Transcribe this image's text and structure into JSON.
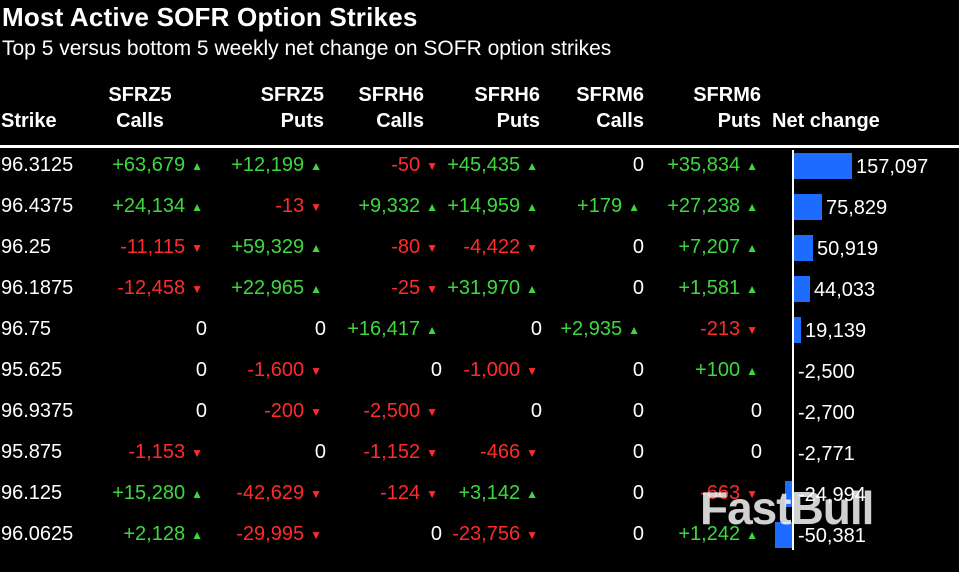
{
  "title": "Most Active SOFR Option Strikes",
  "subtitle": "Top 5 versus bottom 5 weekly net change on SOFR option strikes",
  "headers": {
    "strike": [
      "",
      "Strike"
    ],
    "sfrz5_calls": [
      "SFRZ5",
      "Calls"
    ],
    "sfrz5_puts": [
      "SFRZ5",
      "Puts"
    ],
    "sfrh6_calls": [
      "SFRH6",
      "Calls"
    ],
    "sfrh6_puts": [
      "SFRH6",
      "Puts"
    ],
    "sfrm6_calls": [
      "SFRM6",
      "Calls"
    ],
    "sfrm6_puts": [
      "SFRM6",
      "Puts"
    ],
    "net_change": [
      "",
      "Net change"
    ]
  },
  "colors": {
    "positive": "#3dd83d",
    "negative": "#ff2b2b",
    "bar": "#1e6cff"
  },
  "watermark": "FastBull",
  "chart_data": {
    "type": "table",
    "columns": [
      "Strike",
      "SFRZ5 Calls",
      "SFRZ5 Puts",
      "SFRH6 Calls",
      "SFRH6 Puts",
      "SFRM6 Calls",
      "SFRM6 Puts",
      "Net change"
    ],
    "rows": [
      {
        "strike": "96.3125",
        "cells": [
          "+63,679",
          "+12,199",
          "-50",
          "+45,435",
          "0",
          "+35,834"
        ],
        "net": 157097,
        "net_label": "157,097"
      },
      {
        "strike": "96.4375",
        "cells": [
          "+24,134",
          "-13",
          "+9,332",
          "+14,959",
          "+179",
          "+27,238"
        ],
        "net": 75829,
        "net_label": "75,829"
      },
      {
        "strike": "96.25",
        "cells": [
          "-11,115",
          "+59,329",
          "-80",
          "-4,422",
          "0",
          "+7,207"
        ],
        "net": 50919,
        "net_label": "50,919"
      },
      {
        "strike": "96.1875",
        "cells": [
          "-12,458",
          "+22,965",
          "-25",
          "+31,970",
          "0",
          "+1,581"
        ],
        "net": 44033,
        "net_label": "44,033"
      },
      {
        "strike": "96.75",
        "cells": [
          "0",
          "0",
          "+16,417",
          "0",
          "+2,935",
          "-213"
        ],
        "net": 19139,
        "net_label": "19,139"
      },
      {
        "strike": "95.625",
        "cells": [
          "0",
          "-1,600",
          "0",
          "-1,000",
          "0",
          "+100"
        ],
        "net": -2500,
        "net_label": "-2,500"
      },
      {
        "strike": "96.9375",
        "cells": [
          "0",
          "-200",
          "-2,500",
          "0",
          "0",
          "0"
        ],
        "net": -2700,
        "net_label": "-2,700"
      },
      {
        "strike": "95.875",
        "cells": [
          "-1,153",
          "0",
          "-1,152",
          "-466",
          "0",
          "0"
        ],
        "net": -2771,
        "net_label": "-2,771"
      },
      {
        "strike": "96.125",
        "cells": [
          "+15,280",
          "-42,629",
          "-124",
          "+3,142",
          "0",
          "-663"
        ],
        "net": -24994,
        "net_label": "-24,994"
      },
      {
        "strike": "96.0625",
        "cells": [
          "+2,128",
          "-29,995",
          "0",
          "-23,756",
          "0",
          "+1,242"
        ],
        "net": -50381,
        "net_label": "-50,381"
      }
    ]
  }
}
